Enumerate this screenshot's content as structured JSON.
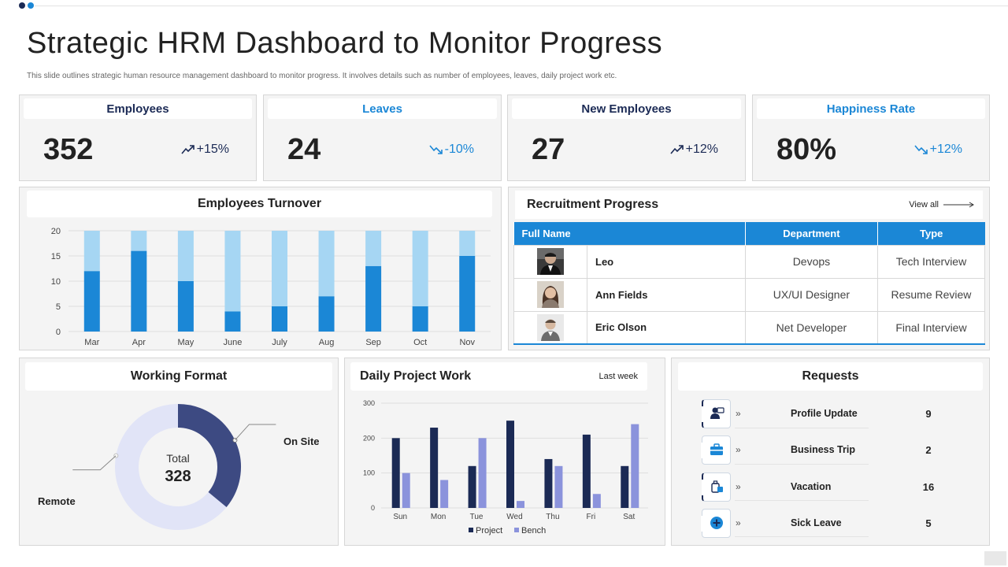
{
  "header": {
    "title": "Strategic HRM Dashboard to Monitor Progress",
    "subtitle": "This slide outlines strategic human resource management dashboard to monitor progress. It involves details such as number of employees, leaves, daily project work etc."
  },
  "colors": {
    "dark_navy": "#1b2a55",
    "accent_blue": "#1b87d6",
    "light_blue": "#a6d6f3",
    "light_purple": "#8b93dc",
    "donut_dark": "#3d4a82",
    "donut_light": "#e1e4f7"
  },
  "kpis": [
    {
      "label": "Employees",
      "value": "352",
      "change": "+15%",
      "direction": "up",
      "label_color": "#1b2a55",
      "change_color": "#1b2a55"
    },
    {
      "label": "Leaves",
      "value": "24",
      "change": "-10%",
      "direction": "down",
      "label_color": "#1b87d6",
      "change_color": "#1b87d6"
    },
    {
      "label": "New Employees",
      "value": "27",
      "change": "+12%",
      "direction": "up",
      "label_color": "#1b2a55",
      "change_color": "#1b2a55"
    },
    {
      "label": "Happiness Rate",
      "value": "80%",
      "change": "+12%",
      "direction": "down",
      "label_color": "#1b87d6",
      "change_color": "#1b87d6"
    }
  ],
  "turnover": {
    "title": "Employees Turnover"
  },
  "recruitment": {
    "title": "Recruitment Progress",
    "view_all": "View all",
    "columns": [
      "Full Name",
      "Department",
      "Type"
    ],
    "rows": [
      {
        "name": "Leo",
        "department": "Devops",
        "type": "Tech Interview",
        "avatar": "avatar-man-dark-icon"
      },
      {
        "name": "Ann Fields",
        "department": "UX/UI  Designer",
        "type": "Resume Review",
        "avatar": "avatar-woman-icon"
      },
      {
        "name": "Eric Olson",
        "department": "Net Developer",
        "type": "Final Interview",
        "avatar": "avatar-man-light-icon"
      }
    ]
  },
  "working_format": {
    "title": "Working Format",
    "total_label": "Total",
    "total_value": "328",
    "labels": {
      "onsite": "On Site",
      "remote": "Remote"
    }
  },
  "daily_project": {
    "title": "Daily Project Work",
    "period": "Last week"
  },
  "requests": {
    "title": "Requests",
    "items": [
      {
        "label": "Profile Update",
        "count": "9",
        "icon": "profile-update-icon"
      },
      {
        "label": "Business Trip",
        "count": "2",
        "icon": "briefcase-icon"
      },
      {
        "label": "Vacation",
        "count": "16",
        "icon": "luggage-icon"
      },
      {
        "label": "Sick Leave",
        "count": "5",
        "icon": "medical-plus-icon"
      }
    ]
  },
  "chart_data": [
    {
      "type": "bar",
      "stacked": true,
      "title": "Employees Turnover",
      "categories": [
        "Mar",
        "Apr",
        "May",
        "June",
        "July",
        "Aug",
        "Sep",
        "Oct",
        "Nov"
      ],
      "series": [
        {
          "values": [
            12,
            16,
            10,
            4,
            5,
            7,
            13,
            5,
            15
          ],
          "color": "#1b87d6"
        },
        {
          "values": [
            8,
            4,
            10,
            16,
            15,
            13,
            7,
            15,
            5
          ],
          "color": "#a6d6f3"
        }
      ],
      "ylim": [
        0,
        20
      ],
      "yticks": [
        0,
        5,
        10,
        15,
        20
      ],
      "grid": "horizontal"
    },
    {
      "type": "pie",
      "donut": true,
      "title": "Working Format",
      "slices": [
        {
          "label": "On Site",
          "value": 36,
          "color": "#3d4a82"
        },
        {
          "label": "Remote",
          "value": 64,
          "color": "#e1e4f7"
        }
      ]
    },
    {
      "type": "bar",
      "title": "Daily Project Work",
      "categories": [
        "Sun",
        "Mon",
        "Tue",
        "Wed",
        "Thu",
        "Fri",
        "Sat"
      ],
      "series": [
        {
          "name": "Project",
          "values": [
            200,
            230,
            120,
            250,
            140,
            210,
            120
          ],
          "color": "#1b2a55"
        },
        {
          "name": "Bench",
          "values": [
            100,
            80,
            200,
            20,
            120,
            40,
            240
          ],
          "color": "#8b93dc"
        }
      ],
      "ylim": [
        0,
        300
      ],
      "yticks": [
        0,
        100,
        200,
        300
      ],
      "grid": "horizontal",
      "legend": "bottom"
    }
  ]
}
